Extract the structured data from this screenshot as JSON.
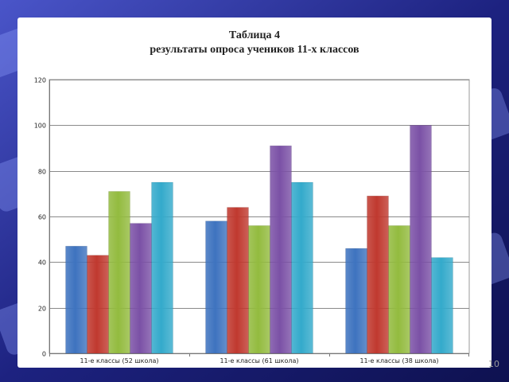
{
  "slide": {
    "title_line1": "Таблица 4",
    "title_line2": "результаты опроса учеников 11-х классов",
    "page_number": "10"
  },
  "chart_data": {
    "type": "bar",
    "title": "Таблица 4 результаты опроса учеников 11-х классов",
    "xlabel": "",
    "ylabel": "",
    "categories": [
      "11-е классы (52 школа)",
      "11-е классы (61 школа)",
      "11-е классы (38 школа)"
    ],
    "series": [
      {
        "values": [
          47,
          58,
          46
        ],
        "color": "#3e73bf"
      },
      {
        "values": [
          43,
          64,
          69
        ],
        "color": "#c0392f"
      },
      {
        "values": [
          71,
          56,
          56
        ],
        "color": "#93bb3f"
      },
      {
        "values": [
          57,
          91,
          100
        ],
        "color": "#7b51a6"
      },
      {
        "values": [
          75,
          75,
          42
        ],
        "color": "#34aacb"
      }
    ],
    "ylim": [
      0,
      120
    ],
    "yticks": [
      "0",
      "20",
      "40",
      "60",
      "80",
      "100",
      "120"
    ],
    "grid": true,
    "legend": "none"
  }
}
